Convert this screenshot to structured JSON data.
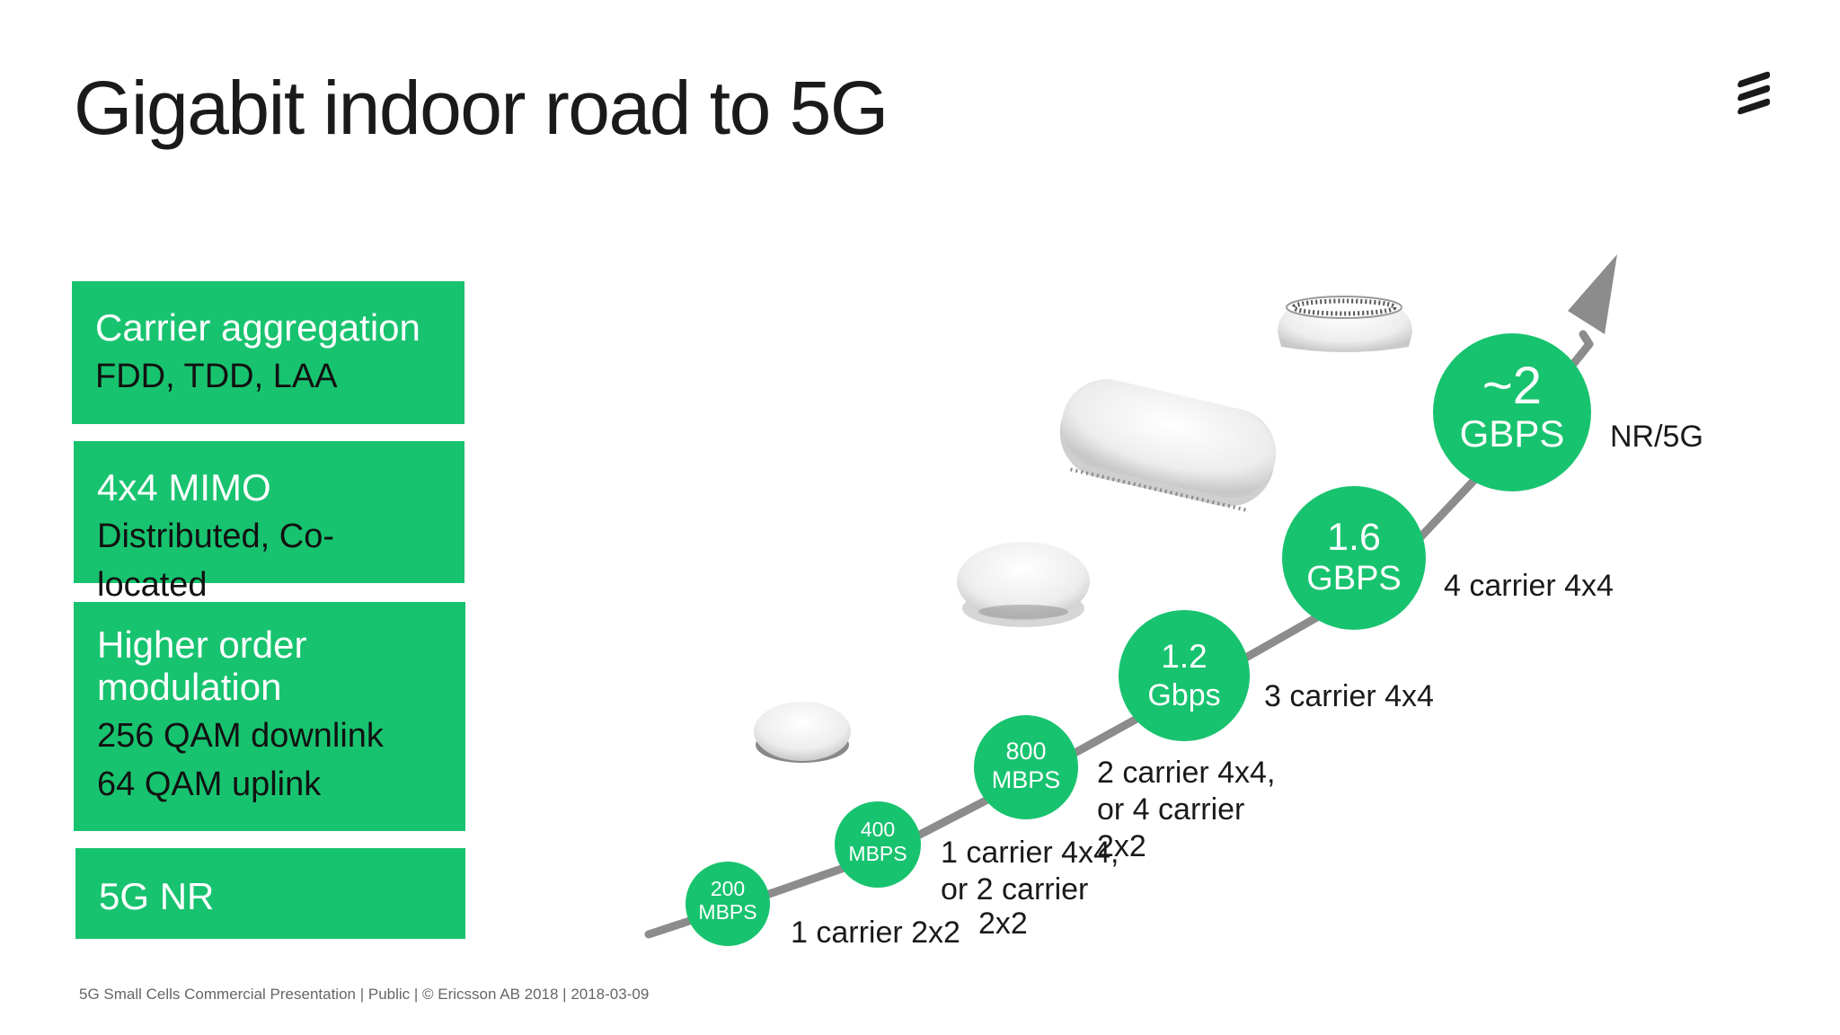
{
  "slide": {
    "title": "Gigabit indoor road to 5G",
    "footer": "5G Small Cells Commercial Presentation  |  Public  |  © Ericsson AB 2018  |  2018-03-09"
  },
  "colors": {
    "accent": "#18c36f",
    "arrow": "#8c8c8c",
    "title": "#1a1a1a"
  },
  "logo": {
    "icon": "ericsson-logo-icon"
  },
  "features": [
    {
      "head": "Carrier aggregation",
      "lines": [
        "FDD, TDD, LAA"
      ]
    },
    {
      "head": "4x4 MIMO",
      "lines": [
        "Distributed, Co-located"
      ]
    },
    {
      "head": "Higher order modulation",
      "lines": [
        "256 QAM downlink",
        "64 QAM uplink"
      ]
    },
    {
      "head": "5G NR",
      "lines": []
    }
  ],
  "steps": [
    {
      "value": "200",
      "unit": "MBPS",
      "label": [
        "1 carrier 2x2"
      ]
    },
    {
      "value": "400",
      "unit": "MBPS",
      "label": [
        "1 carrier 4x4,",
        "or 2 carrier",
        "2x2"
      ]
    },
    {
      "value": "800",
      "unit": "MBPS",
      "label": [
        "2 carrier 4x4,",
        "or 4 carrier",
        "2x2"
      ]
    },
    {
      "value": "1.2",
      "unit": "Gbps",
      "label": [
        "3 carrier 4x4"
      ]
    },
    {
      "value": "1.6",
      "unit": "GBPS",
      "label": [
        "4 carrier 4x4"
      ]
    },
    {
      "value": "~2",
      "unit": "GBPS",
      "label": [
        "NR/5G"
      ]
    }
  ],
  "devices": [
    "small-cell-device-icon",
    "radio-dot-device-icon",
    "pill-radio-device-icon",
    "5g-radio-device-icon"
  ]
}
